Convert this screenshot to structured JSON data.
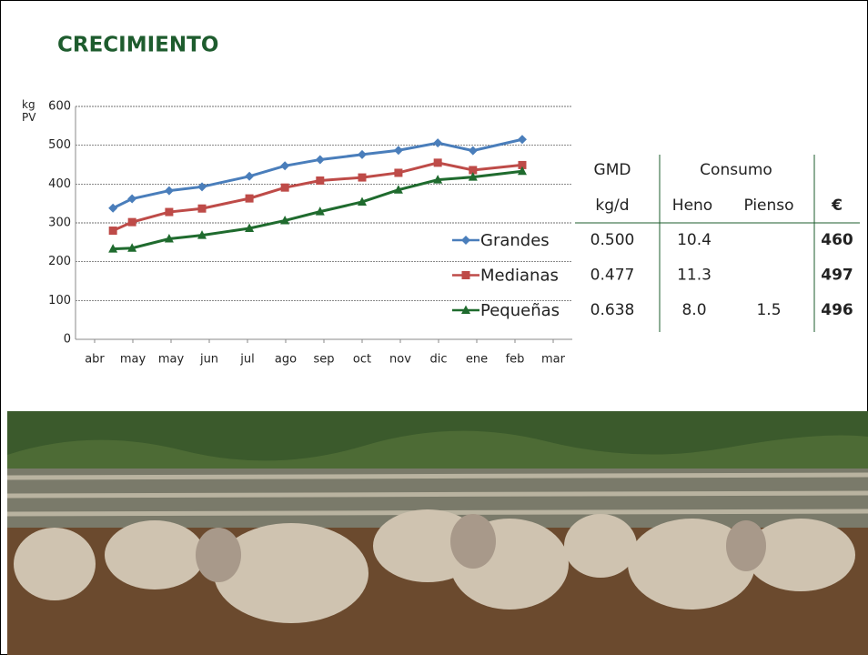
{
  "title": "CRECIMIENTO",
  "chart_data": {
    "type": "line",
    "ylabel": "kg PV",
    "x": [
      0.48,
      0.98,
      1.95,
      2.81,
      4.05,
      4.98,
      5.9,
      7.0,
      7.95,
      8.98,
      9.9,
      11.19
    ],
    "xlim": [
      -0.5,
      12.5
    ],
    "xticks": [
      {
        "value": 0,
        "label": "abr"
      },
      {
        "value": 1,
        "label": "may"
      },
      {
        "value": 2,
        "label": "may"
      },
      {
        "value": 3,
        "label": "jun"
      },
      {
        "value": 4,
        "label": "jul"
      },
      {
        "value": 5,
        "label": "ago"
      },
      {
        "value": 6,
        "label": "sep"
      },
      {
        "value": 7,
        "label": "oct"
      },
      {
        "value": 8,
        "label": "nov"
      },
      {
        "value": 9,
        "label": "dic"
      },
      {
        "value": 10,
        "label": "ene"
      },
      {
        "value": 11,
        "label": "feb"
      },
      {
        "value": 12,
        "label": "mar"
      }
    ],
    "ylim": [
      0,
      600
    ],
    "yticks": [
      0,
      100,
      200,
      300,
      400,
      500,
      600
    ],
    "grid": true,
    "series": [
      {
        "name": "Grandes",
        "color": "#4a7ebb",
        "marker": "diamond",
        "values": [
          338,
          362,
          383,
          393,
          420,
          447,
          463,
          476,
          487,
          506,
          486,
          515
        ]
      },
      {
        "name": "Medianas",
        "color": "#be4b48",
        "marker": "square",
        "values": [
          280,
          302,
          328,
          337,
          363,
          391,
          409,
          417,
          429,
          455,
          436,
          449
        ]
      },
      {
        "name": "Pequeñas",
        "color": "#1f6b2e",
        "marker": "triangle",
        "values": [
          233,
          235,
          259,
          268,
          286,
          306,
          329,
          354,
          385,
          411,
          418,
          433
        ]
      }
    ]
  },
  "table": {
    "header_top": [
      "GMD",
      "Consumo"
    ],
    "header_bottom": [
      "kg/d",
      "Heno",
      "Pienso",
      "€"
    ],
    "rows": [
      {
        "gmd": "0.500",
        "heno": "10.4",
        "eur": "460"
      },
      {
        "gmd": "0.477",
        "heno": "11.3",
        "eur": "497"
      },
      {
        "gmd": "0.638",
        "heno": "8.0",
        "pienso": "1.5",
        "eur": "496"
      }
    ]
  }
}
